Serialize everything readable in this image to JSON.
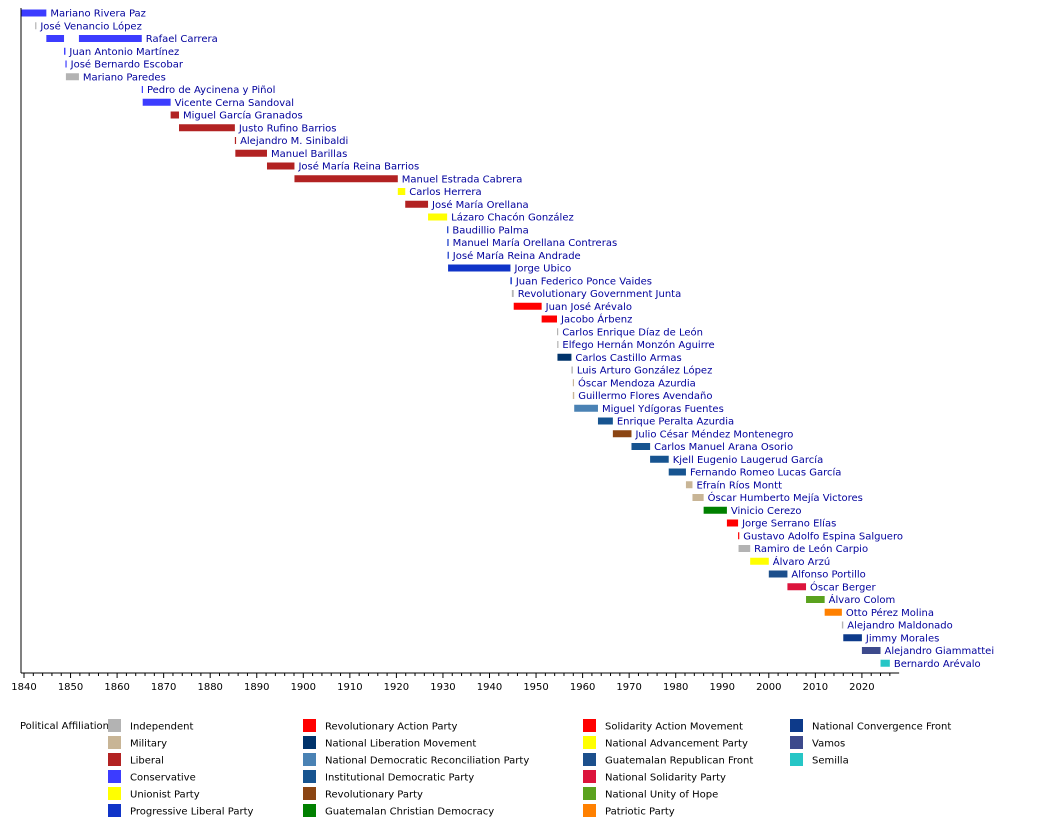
{
  "chart_data": {
    "type": "timeline",
    "x_unit": "year",
    "xlim": [
      1839.5,
      2028
    ],
    "x_ticks": [
      1840,
      1850,
      1860,
      1870,
      1880,
      1890,
      1900,
      1910,
      1920,
      1930,
      1940,
      1950,
      1960,
      1970,
      1980,
      1990,
      2000,
      2010,
      2020
    ],
    "legend_title": "Political Affiliation:",
    "parties": [
      {
        "key": "independent",
        "name": "Independent",
        "color": "#b3b3b3"
      },
      {
        "key": "military",
        "name": "Military",
        "color": "#c8b596"
      },
      {
        "key": "liberal",
        "name": "Liberal",
        "color": "#b22222"
      },
      {
        "key": "conservative",
        "name": "Conservative",
        "color": "#3c3cff"
      },
      {
        "key": "unionist",
        "name": "Unionist Party",
        "color": "#ffff00"
      },
      {
        "key": "plp",
        "name": "Progressive Liberal Party",
        "color": "#1034c8"
      },
      {
        "key": "par",
        "name": "Revolutionary Action Party",
        "color": "#ff0000"
      },
      {
        "key": "mln",
        "name": "National Liberation Movement",
        "color": "#00336b"
      },
      {
        "key": "redenc",
        "name": "National Democratic Reconciliation Party",
        "color": "#4a82b4"
      },
      {
        "key": "pid",
        "name": "Institutional Democratic Party",
        "color": "#175490"
      },
      {
        "key": "pr",
        "name": "Revolutionary Party",
        "color": "#8b4513"
      },
      {
        "key": "dcg",
        "name": "Guatemalan Christian Democracy",
        "color": "#008000"
      },
      {
        "key": "mas",
        "name": "Solidarity Action Movement",
        "color": "#ff0000"
      },
      {
        "key": "pan",
        "name": "National Advancement Party",
        "color": "#ffff00"
      },
      {
        "key": "frg",
        "name": "Guatemalan Republican Front",
        "color": "#1c4f8c"
      },
      {
        "key": "gana",
        "name": "National Solidarity Party",
        "color": "#dc143c"
      },
      {
        "key": "une",
        "name": "National Unity of Hope",
        "color": "#5aa21e"
      },
      {
        "key": "pp",
        "name": "Patriotic Party",
        "color": "#ff8000"
      },
      {
        "key": "fcn",
        "name": "National Convergence Front",
        "color": "#0d3a8a"
      },
      {
        "key": "vamos",
        "name": "Vamos",
        "color": "#3d4a8c"
      },
      {
        "key": "semilla",
        "name": "Semilla",
        "color": "#26c6c6"
      }
    ],
    "rows": [
      {
        "label": "Mariano Rivera Paz",
        "terms": [
          {
            "start": 1839.3,
            "end": 1844.8,
            "party": "conservative"
          }
        ]
      },
      {
        "label": "José Venancio López",
        "terms": [
          {
            "start": 1842.4,
            "end": 1842.6,
            "party": "independent"
          }
        ]
      },
      {
        "label": "Rafael Carrera",
        "terms": [
          {
            "start": 1844.8,
            "end": 1848.6,
            "party": "conservative"
          },
          {
            "start": 1851.8,
            "end": 1865.3,
            "party": "conservative"
          }
        ]
      },
      {
        "label": "Juan Antonio Martínez",
        "terms": [
          {
            "start": 1848.6,
            "end": 1848.9,
            "party": "conservative"
          }
        ]
      },
      {
        "label": "José Bernardo Escobar",
        "terms": [
          {
            "start": 1848.9,
            "end": 1849.0,
            "party": "conservative"
          }
        ]
      },
      {
        "label": "Mariano Paredes",
        "terms": [
          {
            "start": 1849.0,
            "end": 1851.8,
            "party": "independent"
          }
        ]
      },
      {
        "label": "Pedro de Aycinena y Piñol",
        "terms": [
          {
            "start": 1865.3,
            "end": 1865.5,
            "party": "conservative"
          }
        ]
      },
      {
        "label": "Vicente Cerna Sandoval",
        "terms": [
          {
            "start": 1865.5,
            "end": 1871.5,
            "party": "conservative"
          }
        ]
      },
      {
        "label": "Miguel García Granados",
        "terms": [
          {
            "start": 1871.5,
            "end": 1873.3,
            "party": "liberal"
          }
        ]
      },
      {
        "label": "Justo Rufino Barrios",
        "terms": [
          {
            "start": 1873.3,
            "end": 1885.3,
            "party": "liberal"
          }
        ]
      },
      {
        "label": "Alejandro M. Sinibaldi",
        "terms": [
          {
            "start": 1885.3,
            "end": 1885.4,
            "party": "liberal"
          }
        ]
      },
      {
        "label": "Manuel Barillas",
        "terms": [
          {
            "start": 1885.4,
            "end": 1892.2,
            "party": "liberal"
          }
        ]
      },
      {
        "label": "José María Reina Barrios",
        "terms": [
          {
            "start": 1892.2,
            "end": 1898.1,
            "party": "liberal"
          }
        ]
      },
      {
        "label": "Manuel Estrada Cabrera",
        "terms": [
          {
            "start": 1898.1,
            "end": 1920.3,
            "party": "liberal"
          }
        ]
      },
      {
        "label": "Carlos Herrera",
        "terms": [
          {
            "start": 1920.3,
            "end": 1921.9,
            "party": "unionist"
          }
        ]
      },
      {
        "label": "José María Orellana",
        "terms": [
          {
            "start": 1921.9,
            "end": 1926.8,
            "party": "liberal"
          }
        ]
      },
      {
        "label": "Lázaro Chacón González",
        "terms": [
          {
            "start": 1926.8,
            "end": 1930.9,
            "party": "unionist"
          }
        ]
      },
      {
        "label": "Baudillio Palma",
        "terms": [
          {
            "start": 1930.9,
            "end": 1931.0,
            "party": "plp"
          }
        ]
      },
      {
        "label": "Manuel María Orellana Contreras",
        "terms": [
          {
            "start": 1930.95,
            "end": 1931.05,
            "party": "plp"
          }
        ]
      },
      {
        "label": "José María Reina Andrade",
        "terms": [
          {
            "start": 1931.0,
            "end": 1931.1,
            "party": "plp"
          }
        ]
      },
      {
        "label": "Jorge Ubico",
        "terms": [
          {
            "start": 1931.1,
            "end": 1944.5,
            "party": "plp"
          }
        ]
      },
      {
        "label": "Juan Federico Ponce Vaides",
        "terms": [
          {
            "start": 1944.5,
            "end": 1944.8,
            "party": "plp"
          }
        ]
      },
      {
        "label": "Revolutionary Government Junta",
        "terms": [
          {
            "start": 1944.8,
            "end": 1945.2,
            "party": "independent"
          }
        ]
      },
      {
        "label": "Juan José Arévalo",
        "terms": [
          {
            "start": 1945.2,
            "end": 1951.2,
            "party": "par"
          }
        ]
      },
      {
        "label": "Jacobo Árbenz",
        "terms": [
          {
            "start": 1951.2,
            "end": 1954.5,
            "party": "par"
          }
        ]
      },
      {
        "label": "Carlos Enrique Díaz de León",
        "terms": [
          {
            "start": 1954.5,
            "end": 1954.6,
            "party": "independent"
          }
        ]
      },
      {
        "label": "Elfego Hernán Monzón Aguirre",
        "terms": [
          {
            "start": 1954.55,
            "end": 1954.65,
            "party": "independent"
          }
        ]
      },
      {
        "label": "Carlos Castillo Armas",
        "terms": [
          {
            "start": 1954.6,
            "end": 1957.6,
            "party": "mln"
          }
        ]
      },
      {
        "label": "Luis Arturo González López",
        "terms": [
          {
            "start": 1957.6,
            "end": 1957.9,
            "party": "independent"
          }
        ]
      },
      {
        "label": "Óscar Mendoza Azurdia",
        "terms": [
          {
            "start": 1957.9,
            "end": 1958.0,
            "party": "military"
          }
        ]
      },
      {
        "label": "Guillermo Flores Avendaño",
        "terms": [
          {
            "start": 1957.9,
            "end": 1958.2,
            "party": "military"
          }
        ]
      },
      {
        "label": "Miguel Ydígoras Fuentes",
        "terms": [
          {
            "start": 1958.2,
            "end": 1963.3,
            "party": "redenc"
          }
        ]
      },
      {
        "label": "Enrique Peralta Azurdia",
        "terms": [
          {
            "start": 1963.3,
            "end": 1966.5,
            "party": "pid"
          }
        ]
      },
      {
        "label": "Julio César Méndez Montenegro",
        "terms": [
          {
            "start": 1966.5,
            "end": 1970.5,
            "party": "pr"
          }
        ]
      },
      {
        "label": "Carlos Manuel Arana Osorio",
        "terms": [
          {
            "start": 1970.5,
            "end": 1974.5,
            "party": "pid"
          }
        ]
      },
      {
        "label": "Kjell Eugenio Laugerud García",
        "terms": [
          {
            "start": 1974.5,
            "end": 1978.5,
            "party": "pid"
          }
        ]
      },
      {
        "label": "Fernando Romeo Lucas García",
        "terms": [
          {
            "start": 1978.5,
            "end": 1982.2,
            "party": "pid"
          }
        ]
      },
      {
        "label": "Efraín Ríos Montt",
        "terms": [
          {
            "start": 1982.2,
            "end": 1983.6,
            "party": "military"
          }
        ]
      },
      {
        "label": "Óscar Humberto Mejía Victores",
        "terms": [
          {
            "start": 1983.6,
            "end": 1986.0,
            "party": "military"
          }
        ]
      },
      {
        "label": "Vinicio Cerezo",
        "terms": [
          {
            "start": 1986.0,
            "end": 1991.0,
            "party": "dcg"
          }
        ]
      },
      {
        "label": "Jorge Serrano Elías",
        "terms": [
          {
            "start": 1991.0,
            "end": 1993.4,
            "party": "mas"
          }
        ]
      },
      {
        "label": "Gustavo Adolfo Espina Salguero",
        "terms": [
          {
            "start": 1993.4,
            "end": 1993.5,
            "party": "mas"
          }
        ]
      },
      {
        "label": "Ramiro de León Carpio",
        "terms": [
          {
            "start": 1993.5,
            "end": 1996.0,
            "party": "independent"
          }
        ]
      },
      {
        "label": "Álvaro Arzú",
        "terms": [
          {
            "start": 1996.0,
            "end": 2000.0,
            "party": "pan"
          }
        ]
      },
      {
        "label": "Alfonso Portillo",
        "terms": [
          {
            "start": 2000.0,
            "end": 2004.0,
            "party": "frg"
          }
        ]
      },
      {
        "label": "Óscar Berger",
        "terms": [
          {
            "start": 2004.0,
            "end": 2008.0,
            "party": "gana"
          }
        ]
      },
      {
        "label": "Álvaro Colom",
        "terms": [
          {
            "start": 2008.0,
            "end": 2012.0,
            "party": "une"
          }
        ]
      },
      {
        "label": "Otto Pérez Molina",
        "terms": [
          {
            "start": 2012.0,
            "end": 2015.7,
            "party": "pp"
          }
        ]
      },
      {
        "label": "Alejandro Maldonado",
        "terms": [
          {
            "start": 2015.7,
            "end": 2016.0,
            "party": "independent"
          }
        ]
      },
      {
        "label": "Jimmy Morales",
        "terms": [
          {
            "start": 2016.0,
            "end": 2020.0,
            "party": "fcn"
          }
        ]
      },
      {
        "label": "Alejandro Giammattei",
        "terms": [
          {
            "start": 2020.0,
            "end": 2024.0,
            "party": "vamos"
          }
        ]
      },
      {
        "label": "Bernardo Arévalo",
        "terms": [
          {
            "start": 2024.0,
            "end": 2026.0,
            "party": "semilla"
          }
        ]
      }
    ]
  }
}
